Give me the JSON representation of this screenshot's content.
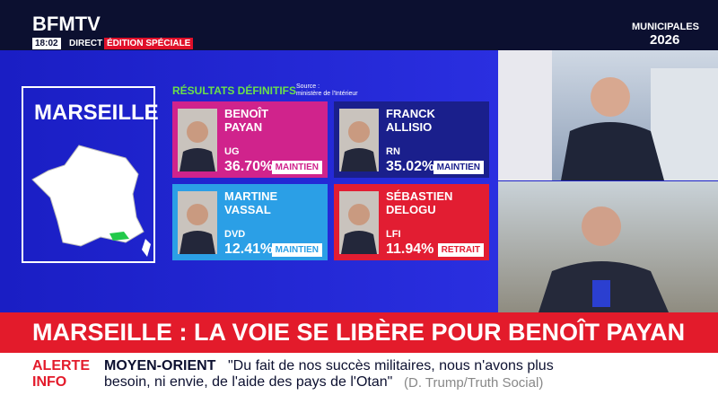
{
  "header": {
    "logo": "BFMTV",
    "time": "18:02",
    "live": "DIRECT",
    "edition": "ÉDITION SPÉCIALE",
    "event": {
      "line1": "MUNICIPALES",
      "line2": "2026"
    }
  },
  "map": {
    "city": "MARSEILLE"
  },
  "results": {
    "title": "RÉSULTATS DÉFINITIFS",
    "source": {
      "line1": "Source :",
      "line2": "ministère de l'Intérieur"
    },
    "candidates": [
      {
        "first": "BENOÎT",
        "last": "PAYAN",
        "party": "UG",
        "share": "36.70%",
        "status": "MAINTIEN"
      },
      {
        "first": "FRANCK",
        "last": "ALLISIO",
        "party": "RN",
        "share": "35.02%",
        "status": "MAINTIEN"
      },
      {
        "first": "MARTINE",
        "last": "VASSAL",
        "party": "DVD",
        "share": "12.41%",
        "status": "MAINTIEN"
      },
      {
        "first": "SÉBASTIEN",
        "last": "DELOGU",
        "party": "LFI",
        "share": "11.94%",
        "status": "RETRAIT"
      }
    ]
  },
  "banner": {
    "headline": "MARSEILLE : LA VOIE SE LIBÈRE POUR BENOÎT PAYAN"
  },
  "ticker": {
    "label1": "ALERTE",
    "label2": "INFO",
    "topic": "MOYEN-ORIENT",
    "quote1": "\"Du fait de nos succès militaires, nous n'avons plus",
    "quote2": "besoin, ni envie, de l'aide des pays de l'Otan\"",
    "source": "(D. Trump/Truth Social)"
  }
}
